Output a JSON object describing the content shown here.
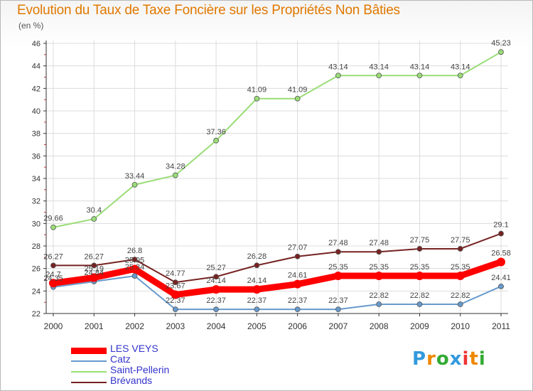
{
  "chart_data": {
    "type": "line",
    "title": "Evolution du Taux de Taxe Foncière sur les Propriétés Non Bâties",
    "ylabel": "(en %)",
    "categories": [
      "2000",
      "2001",
      "2002",
      "2003",
      "2004",
      "2005",
      "2006",
      "2007",
      "2008",
      "2009",
      "2010",
      "2011"
    ],
    "ylim": [
      22,
      46
    ],
    "yticks": [
      22,
      24,
      26,
      28,
      30,
      32,
      34,
      36,
      38,
      40,
      42,
      44,
      46
    ],
    "grid": true,
    "legend_position": "bottom-left",
    "series": [
      {
        "name": "LES VEYS",
        "color": "#ff0000",
        "values": [
          24.7,
          25.19,
          25.95,
          23.67,
          24.14,
          24.14,
          24.61,
          25.35,
          25.35,
          25.35,
          25.35,
          26.58
        ],
        "labels": [
          "24.7",
          "25.19",
          "25.95",
          "23.67",
          "24.14",
          "24.14",
          "24.61",
          "25.35",
          "25.35",
          "25.35",
          "25.35",
          "26.58"
        ]
      },
      {
        "name": "Catz",
        "color": "#6699cc",
        "values": [
          24.35,
          24.84,
          25.34,
          22.37,
          22.37,
          22.37,
          22.37,
          22.37,
          22.82,
          22.82,
          22.82,
          24.41
        ],
        "labels": [
          "24.35",
          "24.84",
          "25.34",
          "22.37",
          "22.37",
          "22.37",
          "22.37",
          "22.37",
          "22.82",
          "22.82",
          "22.82",
          "24.41"
        ]
      },
      {
        "name": "Saint-Pellerin",
        "color": "#99dd77",
        "values": [
          29.66,
          30.4,
          33.44,
          34.28,
          37.36,
          41.09,
          41.09,
          43.14,
          43.14,
          43.14,
          43.14,
          45.23
        ],
        "labels": [
          "29.66",
          "30.4",
          "33.44",
          "34.28",
          "37.36",
          "41.09",
          "41.09",
          "43.14",
          "43.14",
          "43.14",
          "43.14",
          "45.23"
        ]
      },
      {
        "name": "Brévands",
        "color": "#772222",
        "values": [
          26.27,
          26.27,
          26.8,
          24.77,
          25.27,
          26.28,
          27.07,
          27.48,
          27.48,
          27.75,
          27.75,
          29.1
        ],
        "labels": [
          "26.27",
          "26.27",
          "26.8",
          "24.77",
          "25.27",
          "26.28",
          "27.07",
          "27.48",
          "27.48",
          "27.75",
          "27.75",
          "29.1"
        ]
      }
    ]
  },
  "logo": {
    "letters": [
      "P",
      "r",
      "o",
      "x",
      "i",
      "t",
      "i"
    ],
    "colors": [
      "#3399dd",
      "#ee8800",
      "#33aa33",
      "#3399dd",
      "#ee3333",
      "#ee8800",
      "#33aa33"
    ]
  }
}
